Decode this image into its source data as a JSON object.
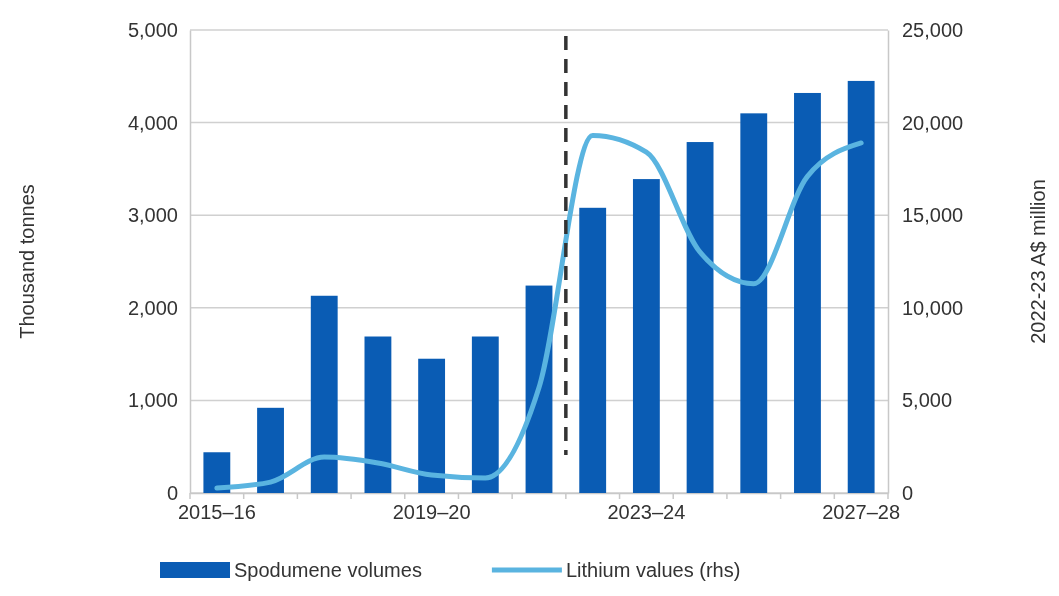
{
  "chart_data": {
    "type": "bar",
    "categories": [
      "2015–16",
      null,
      null,
      null,
      "2019–20",
      null,
      null,
      null,
      "2023–24",
      null,
      null,
      null,
      "2027–28"
    ],
    "series": [
      {
        "name": "Spodumene volumes",
        "color": "#0a5cb4",
        "values": [
          440,
          920,
          2130,
          1690,
          1450,
          1690,
          2240,
          3080,
          3390,
          3790,
          4100,
          4320,
          4450
        ]
      },
      {
        "name": "Lithium values (rhs)",
        "type": "line",
        "axis": "y2",
        "color": "#5ab4e0",
        "values": [
          270,
          590,
          1940,
          1620,
          970,
          810,
          5700,
          19300,
          18400,
          13000,
          11300,
          17100,
          18900
        ]
      }
    ],
    "ylabel": "Thousand tonnes",
    "y2label": "2022-23 A$ million",
    "ylim": [
      0,
      5000
    ],
    "yticks": [
      {
        "value": 0,
        "label": "0"
      },
      {
        "value": 1000,
        "label": "1,000"
      },
      {
        "value": 2000,
        "label": "2,000"
      },
      {
        "value": 3000,
        "label": "3,000"
      },
      {
        "value": 4000,
        "label": "4,000"
      },
      {
        "value": 5000,
        "label": "5,000"
      }
    ],
    "y2lim": [
      0,
      25000
    ],
    "y2ticks": [
      {
        "value": 0,
        "label": "0"
      },
      {
        "value": 5000,
        "label": "5,000"
      },
      {
        "value": 10000,
        "label": "10,000"
      },
      {
        "value": 15000,
        "label": "15,000"
      },
      {
        "value": 20000,
        "label": "20,000"
      },
      {
        "value": 25000,
        "label": "25,000"
      }
    ],
    "grid": "y",
    "legend": "bottom"
  }
}
